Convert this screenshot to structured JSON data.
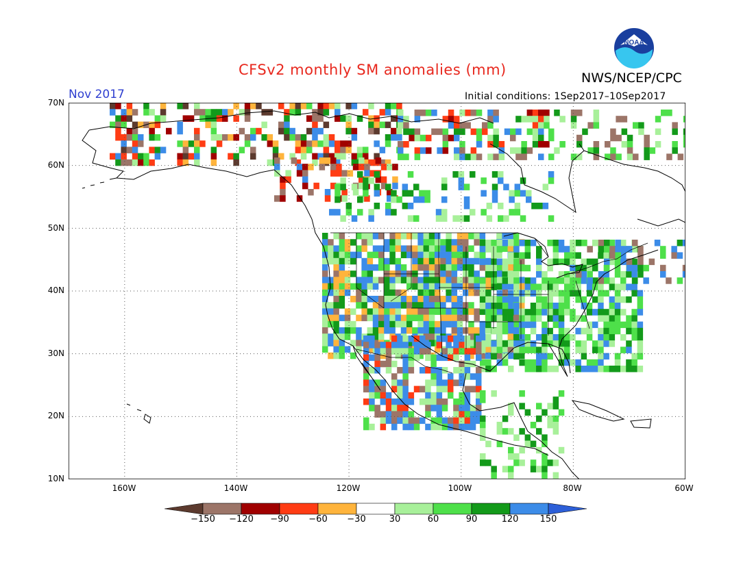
{
  "header": {
    "title": "CFSv2 monthly SM anomalies (mm)",
    "agency": "NWS/NCEP/CPC",
    "period": "Nov 2017",
    "initial_conditions": "Initial conditions: 1Sep2017–10Sep2017",
    "logo_text": "NOAA"
  },
  "axes": {
    "lat_labels": [
      "70N",
      "60N",
      "50N",
      "40N",
      "30N",
      "20N",
      "10N"
    ],
    "lon_labels": [
      "160W",
      "140W",
      "120W",
      "100W",
      "80W",
      "60W"
    ],
    "lat_range": [
      10,
      70
    ],
    "lon_range": [
      -170,
      -60
    ],
    "gridlines": "dotted"
  },
  "colorbar": {
    "labels": [
      "−150",
      "−120",
      "−90",
      "−60",
      "−30",
      "30",
      "60",
      "90",
      "120",
      "150"
    ],
    "colors": [
      "#5c3a2e",
      "#9c7568",
      "#a00000",
      "#ff3c14",
      "#ffb43c",
      "#ffffff",
      "#a8f09a",
      "#4ee04a",
      "#139a1a",
      "#3c8ce8",
      "#2d5fd8"
    ]
  },
  "colors": {
    "title": "#e8281e",
    "period": "#2f3fd0",
    "land_outline": "#000000"
  }
}
